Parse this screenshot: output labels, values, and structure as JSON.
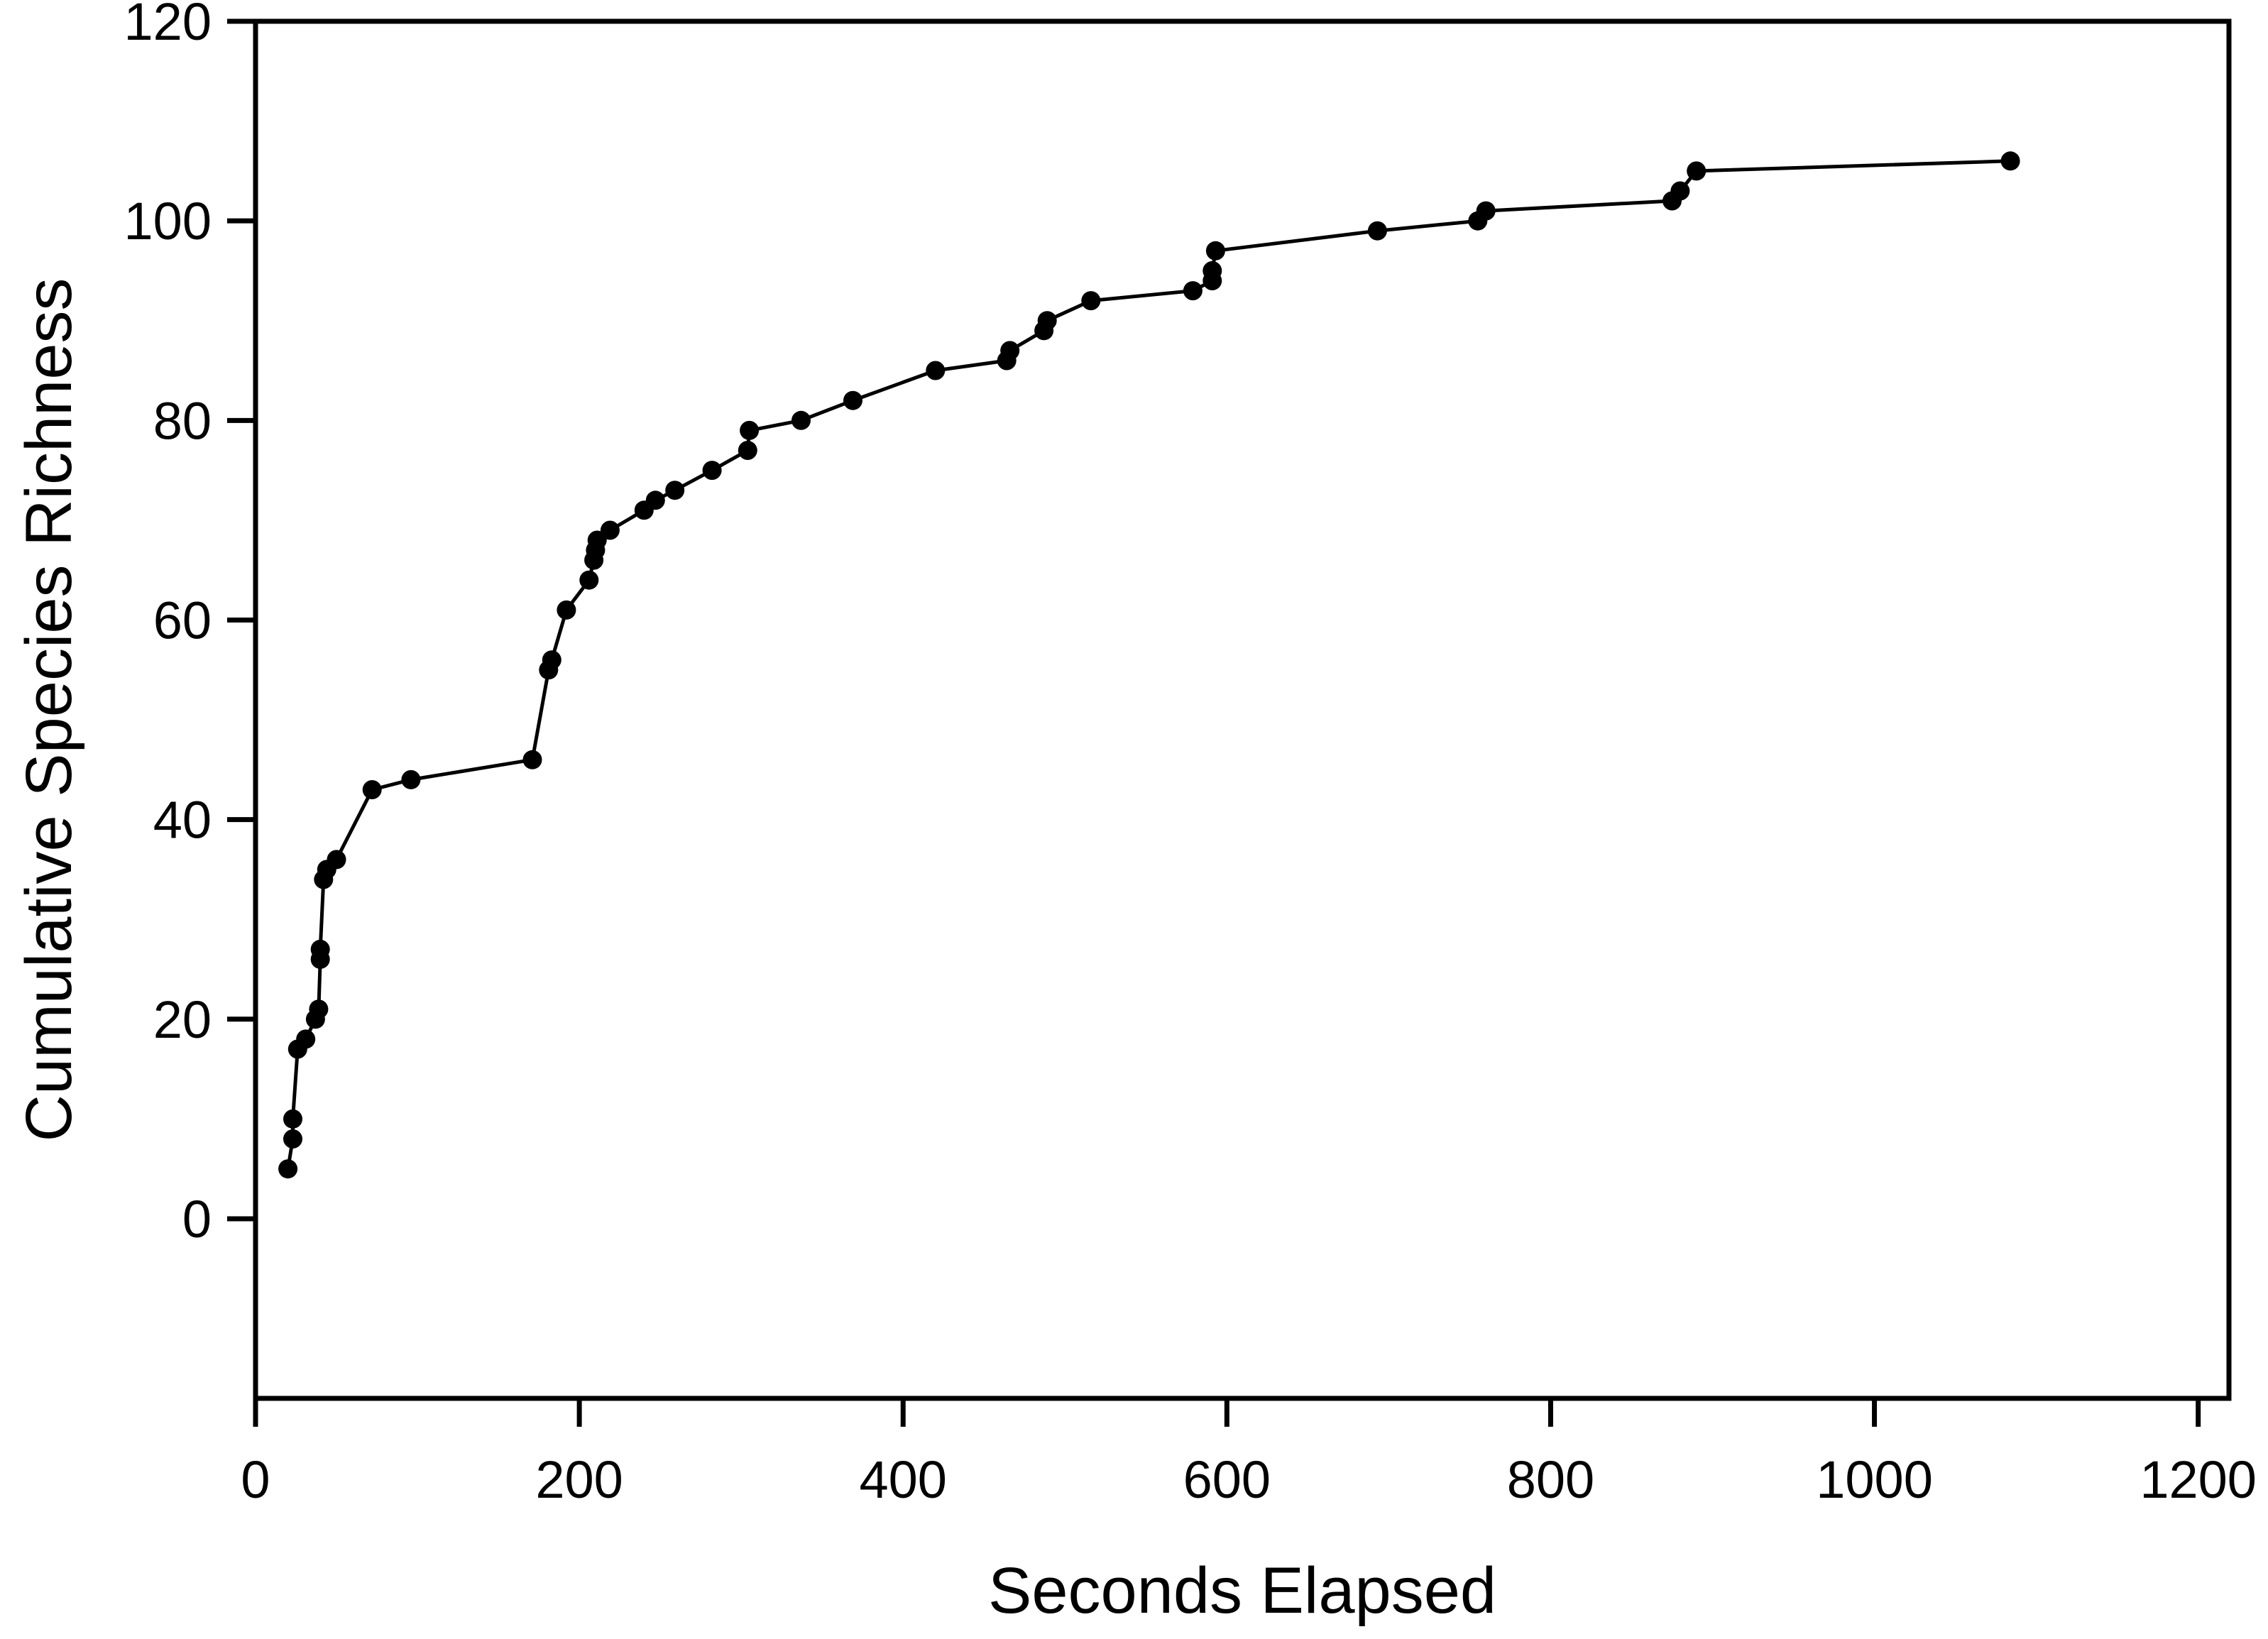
{
  "chart_data": {
    "type": "line",
    "title": "",
    "xlabel": "Seconds Elapsed",
    "ylabel": "Cumulative Species Richness",
    "x_ticks": [
      0,
      200,
      400,
      600,
      800,
      1000,
      1200
    ],
    "y_ticks": [
      0,
      20,
      40,
      60,
      80,
      100,
      120
    ],
    "xlim": [
      0,
      1219
    ],
    "ylim": [
      -18,
      120
    ],
    "grid": false,
    "legend": "none",
    "marker": "filled-circle",
    "line_color": "#000000",
    "marker_color": "#000000",
    "axis_color": "#000000",
    "background_color": "#ffffff",
    "points": [
      [
        20,
        5
      ],
      [
        23,
        8
      ],
      [
        23,
        10
      ],
      [
        26,
        17
      ],
      [
        31,
        18
      ],
      [
        37,
        20
      ],
      [
        39,
        21
      ],
      [
        40,
        26
      ],
      [
        40,
        27
      ],
      [
        42,
        34
      ],
      [
        44,
        35
      ],
      [
        50,
        36
      ],
      [
        72,
        43
      ],
      [
        96,
        44
      ],
      [
        171,
        46
      ],
      [
        181,
        55
      ],
      [
        183,
        56
      ],
      [
        192,
        61
      ],
      [
        206,
        64
      ],
      [
        209,
        66
      ],
      [
        210,
        67
      ],
      [
        211,
        68
      ],
      [
        219,
        69
      ],
      [
        240,
        71
      ],
      [
        247,
        72
      ],
      [
        259,
        73
      ],
      [
        282,
        75
      ],
      [
        304,
        77
      ],
      [
        305,
        79
      ],
      [
        337,
        80
      ],
      [
        369,
        82
      ],
      [
        420,
        85
      ],
      [
        464,
        86
      ],
      [
        466,
        87
      ],
      [
        487,
        89
      ],
      [
        489,
        90
      ],
      [
        516,
        92
      ],
      [
        579,
        93
      ],
      [
        591,
        94
      ],
      [
        591,
        95
      ],
      [
        593,
        97
      ],
      [
        693,
        99
      ],
      [
        755,
        100
      ],
      [
        760,
        101
      ],
      [
        875,
        102
      ],
      [
        880,
        103
      ],
      [
        890,
        105
      ],
      [
        1084,
        106
      ]
    ]
  }
}
